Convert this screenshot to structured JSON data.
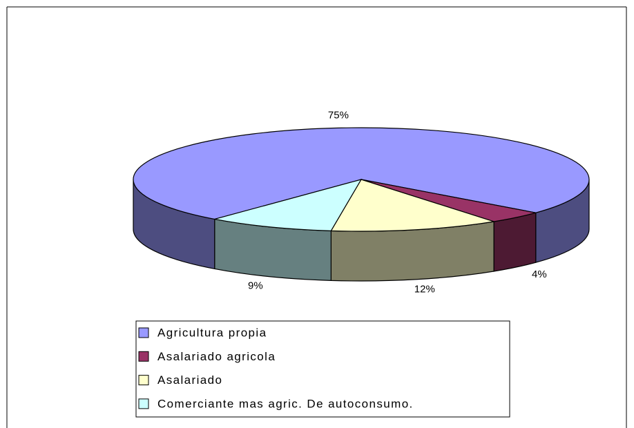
{
  "chart_data": {
    "type": "pie",
    "categories": [
      "Agricultura propia",
      "Asalariado agricola",
      "Asalariado",
      "Comerciante mas agric. De autoconsumo."
    ],
    "values": [
      75,
      4,
      12,
      9
    ],
    "value_labels": [
      "75%",
      "4%",
      "12%",
      "9%"
    ],
    "colors": [
      "#9999ff",
      "#993366",
      "#ffffcc",
      "#ccffff"
    ],
    "legend": "bottom"
  }
}
